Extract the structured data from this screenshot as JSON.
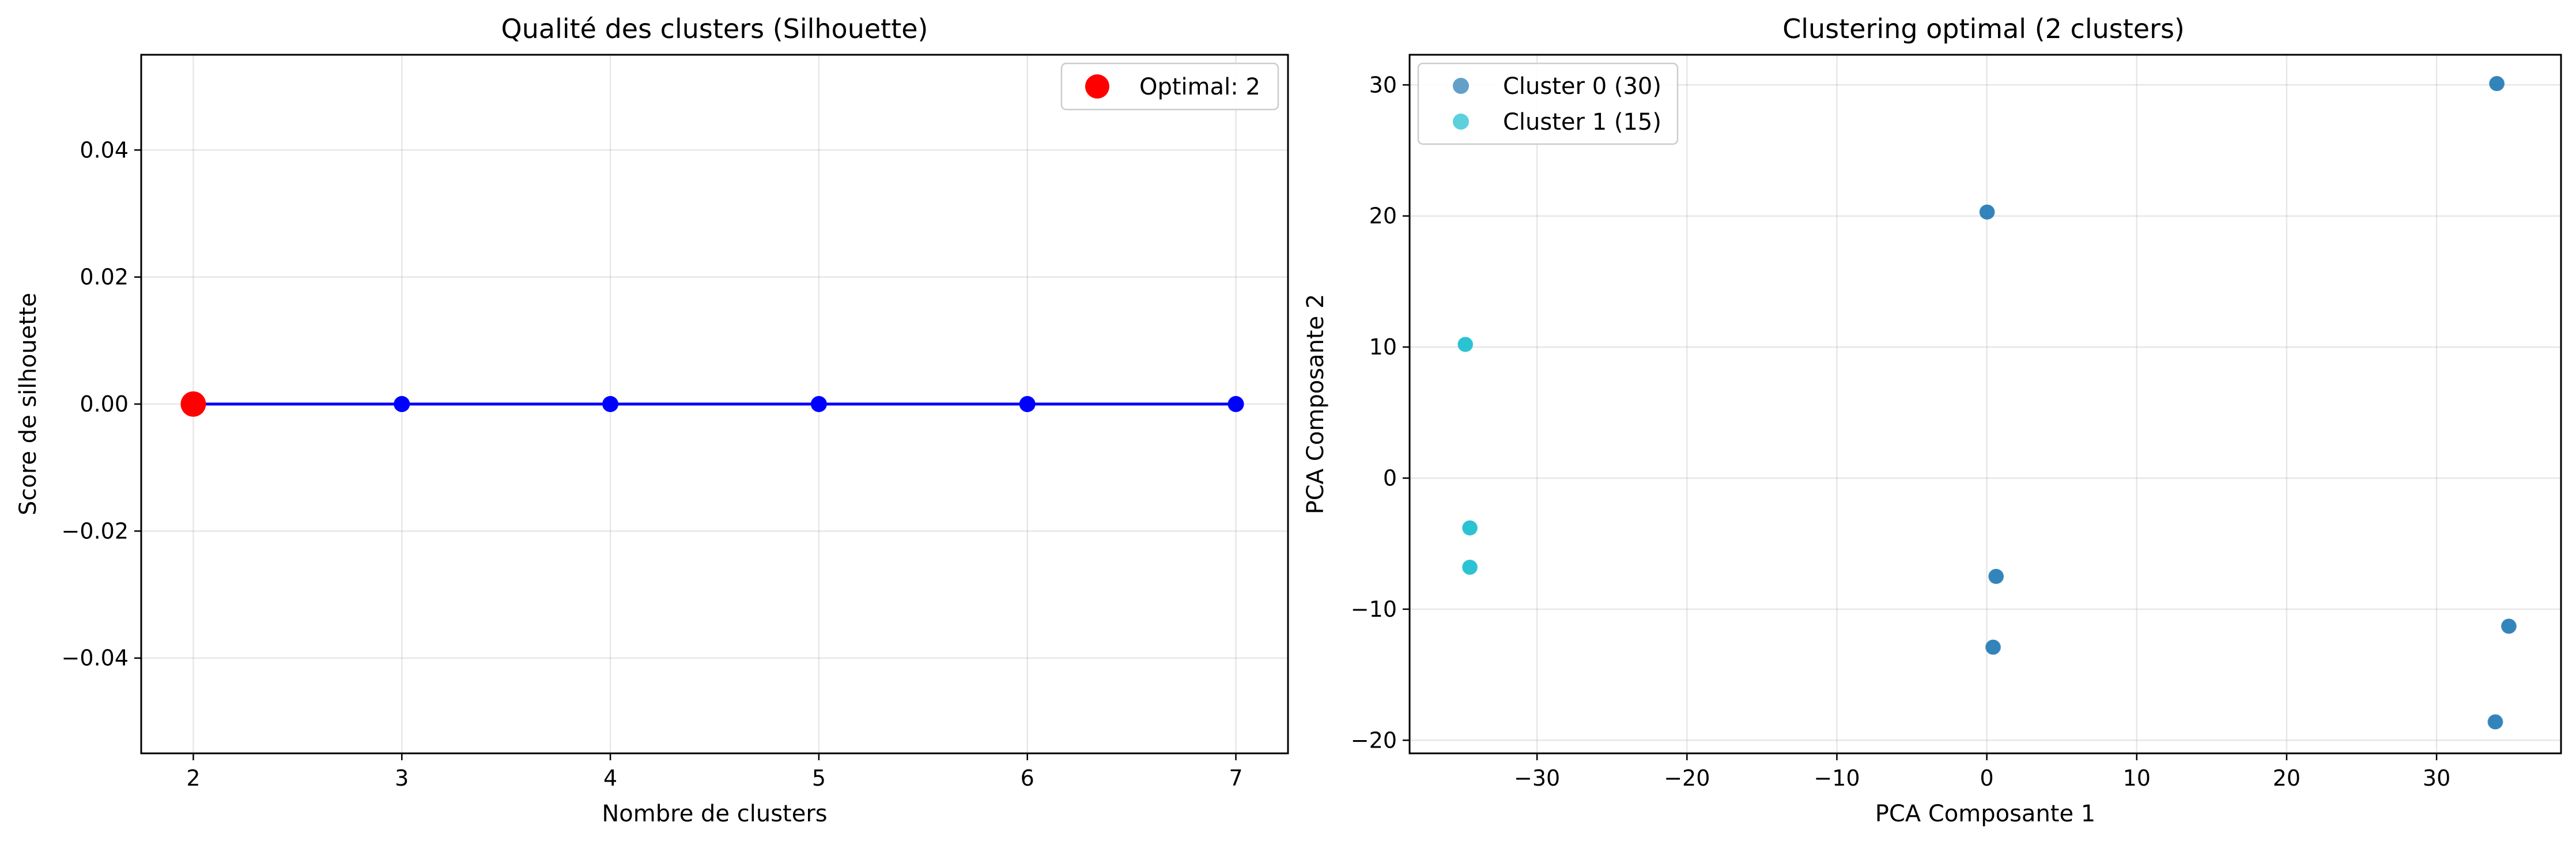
{
  "chart_data": [
    {
      "type": "line",
      "title": "Qualité des clusters (Silhouette)",
      "xlabel": "Nombre de clusters",
      "ylabel": "Score de silhouette",
      "xlim": [
        1.75,
        7.25
      ],
      "ylim": [
        -0.055,
        0.055
      ],
      "xticks": [
        2,
        3,
        4,
        5,
        6,
        7
      ],
      "yticks": [
        -0.04,
        -0.02,
        0.0,
        0.02,
        0.04
      ],
      "ytick_labels": [
        "−0.04",
        "−0.02",
        "0.00",
        "0.02",
        "0.04"
      ],
      "grid": true,
      "series": [
        {
          "x": [
            2,
            3,
            4,
            5,
            6,
            7
          ],
          "y": [
            0,
            0,
            0,
            0,
            0,
            0
          ],
          "color": "#0000ff",
          "marker": "circle"
        }
      ],
      "highlight": {
        "label": "Optimal: 2",
        "x": 2,
        "y": 0,
        "color": "#ff0000"
      },
      "legend": {
        "position": "top-right",
        "entries": [
          "Optimal: 2"
        ]
      }
    },
    {
      "type": "scatter",
      "title": "Clustering optimal (2 clusters)",
      "xlabel": "PCA Composante 1",
      "ylabel": "PCA Composante 2",
      "xlim": [
        -38.5,
        38.3
      ],
      "ylim": [
        -21.0,
        32.3
      ],
      "xticks": [
        -30,
        -20,
        -10,
        0,
        10,
        20,
        30
      ],
      "xtick_labels": [
        "−30",
        "−20",
        "−10",
        "0",
        "10",
        "20",
        "30"
      ],
      "yticks": [
        -20,
        -10,
        0,
        10,
        20,
        30
      ],
      "ytick_labels": [
        "−20",
        "−10",
        "0",
        "10",
        "20",
        "30"
      ],
      "grid": true,
      "legend": {
        "position": "top-left"
      },
      "series": [
        {
          "name": "Cluster 0 (30)",
          "color": "#1f77b4",
          "points": [
            [
              34.0,
              30.1
            ],
            [
              0.0,
              20.3
            ],
            [
              0.6,
              -7.5
            ],
            [
              0.4,
              -12.9
            ],
            [
              34.8,
              -11.3
            ],
            [
              33.9,
              -18.6
            ]
          ]
        },
        {
          "name": "Cluster 1 (15)",
          "color": "#17becf",
          "points": [
            [
              -34.8,
              10.2
            ],
            [
              -34.5,
              -3.8
            ],
            [
              -34.5,
              -6.8
            ]
          ]
        }
      ]
    }
  ]
}
